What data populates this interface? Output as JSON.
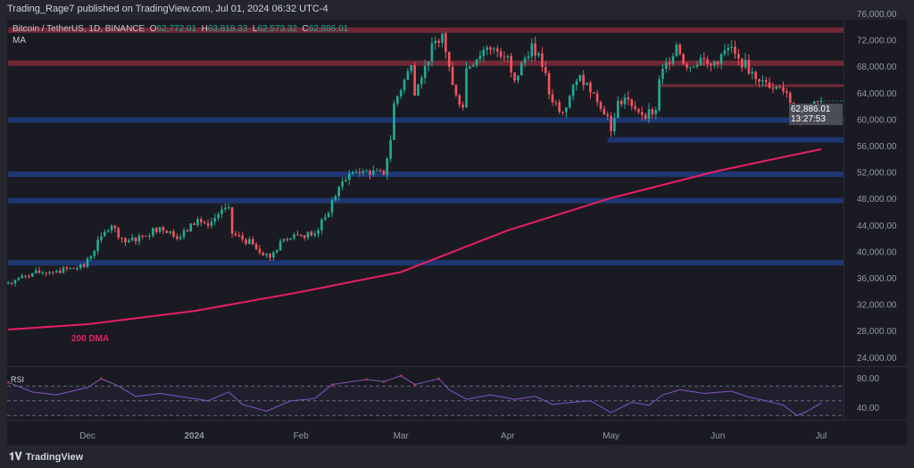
{
  "header": {
    "published": "Trading_Rage7 published on TradingView.com, Jul 01, 2024 06:32 UTC-4"
  },
  "symbol": {
    "name": "Bitcoin / TetherUS, 1D, BINANCE",
    "o_label": "O",
    "o": "62,772.01",
    "h_label": "H",
    "h": "63,818.33",
    "l_label": "L",
    "l": "62,573.32",
    "c_label": "C",
    "c": "62,886.01",
    "indicator": "MA"
  },
  "last_price": {
    "price": "62,886.01",
    "countdown": "13:27:53"
  },
  "footer": {
    "brand": "TradingView"
  },
  "colors": {
    "up": "#22ab94",
    "down": "#f7525f",
    "ma": "#e91e63",
    "resistance": "#7a2a38",
    "support": "#1f3a7a",
    "rsi": "#7e57c2"
  },
  "chart_data": [
    {
      "type": "candlestick",
      "title": "Bitcoin / TetherUS, 1D",
      "ylim": [
        22000,
        78000
      ],
      "y_ticks": [
        "76,000.00",
        "72,000.00",
        "68,000.00",
        "64,000.00",
        "60,000.00",
        "56,000.00",
        "52,000.00",
        "48,000.00",
        "44,000.00",
        "40,000.00",
        "36,000.00",
        "32,000.00",
        "28,000.00",
        "24,000.00"
      ],
      "x_ticks": [
        "Dec",
        "2024",
        "Feb",
        "Mar",
        "Apr",
        "May",
        "Jun",
        "Jul"
      ],
      "x_tick_dates": [
        "2023-12-01",
        "2024-01-01",
        "2024-02-01",
        "2024-03-01",
        "2024-04-01",
        "2024-05-01",
        "2024-06-01",
        "2024-07-01"
      ],
      "close_keypoints": [
        [
          "2023-11-08",
          35400
        ],
        [
          "2023-11-15",
          36800
        ],
        [
          "2023-11-22",
          37200
        ],
        [
          "2023-11-30",
          37800
        ],
        [
          "2023-12-05",
          42400
        ],
        [
          "2023-12-08",
          44000
        ],
        [
          "2023-12-12",
          41500
        ],
        [
          "2023-12-17",
          42500
        ],
        [
          "2023-12-22",
          43800
        ],
        [
          "2023-12-28",
          42300
        ],
        [
          "2024-01-02",
          45000
        ],
        [
          "2024-01-05",
          44000
        ],
        [
          "2024-01-09",
          46500
        ],
        [
          "2024-01-11",
          46800
        ],
        [
          "2024-01-12",
          42800
        ],
        [
          "2024-01-18",
          41200
        ],
        [
          "2024-01-23",
          39200
        ],
        [
          "2024-01-27",
          42000
        ],
        [
          "2024-01-31",
          42600
        ],
        [
          "2024-02-05",
          42800
        ],
        [
          "2024-02-08",
          45300
        ],
        [
          "2024-02-12",
          49900
        ],
        [
          "2024-02-15",
          51900
        ],
        [
          "2024-02-20",
          52300
        ],
        [
          "2024-02-25",
          51700
        ],
        [
          "2024-02-27",
          57000
        ],
        [
          "2024-02-28",
          62500
        ],
        [
          "2024-03-04",
          68300
        ],
        [
          "2024-03-05",
          63700
        ],
        [
          "2024-03-08",
          68200
        ],
        [
          "2024-03-11",
          72000
        ],
        [
          "2024-03-13",
          73100
        ],
        [
          "2024-03-16",
          65300
        ],
        [
          "2024-03-19",
          61900
        ],
        [
          "2024-03-20",
          67800
        ],
        [
          "2024-03-25",
          70600
        ],
        [
          "2024-03-28",
          70800
        ],
        [
          "2024-04-01",
          69700
        ],
        [
          "2024-04-03",
          66000
        ],
        [
          "2024-04-08",
          71600
        ],
        [
          "2024-04-12",
          67100
        ],
        [
          "2024-04-13",
          63900
        ],
        [
          "2024-04-17",
          61200
        ],
        [
          "2024-04-22",
          66800
        ],
        [
          "2024-04-26",
          64000
        ],
        [
          "2024-04-30",
          60600
        ],
        [
          "2024-05-01",
          58300
        ],
        [
          "2024-05-03",
          62900
        ],
        [
          "2024-05-06",
          63100
        ],
        [
          "2024-05-10",
          60800
        ],
        [
          "2024-05-14",
          61500
        ],
        [
          "2024-05-15",
          66200
        ],
        [
          "2024-05-20",
          71400
        ],
        [
          "2024-05-23",
          67900
        ],
        [
          "2024-05-27",
          69400
        ],
        [
          "2024-05-30",
          68300
        ],
        [
          "2024-06-05",
          71100
        ],
        [
          "2024-06-07",
          69300
        ],
        [
          "2024-06-11",
          67300
        ],
        [
          "2024-06-14",
          66000
        ],
        [
          "2024-06-18",
          65100
        ],
        [
          "2024-06-21",
          64100
        ],
        [
          "2024-06-24",
          60300
        ],
        [
          "2024-06-27",
          61600
        ],
        [
          "2024-06-30",
          62700
        ],
        [
          "2024-07-01",
          62886
        ]
      ],
      "levels": [
        {
          "price": 73600,
          "kind": "resistance",
          "from": "2023-11-08"
        },
        {
          "price": 68600,
          "kind": "resistance",
          "from": "2023-11-08"
        },
        {
          "price": 65000,
          "kind": "resistance",
          "from": "2024-05-15"
        },
        {
          "price": 60000,
          "kind": "support",
          "from": "2023-11-08"
        },
        {
          "price": 57000,
          "kind": "support",
          "from": "2024-04-30"
        },
        {
          "price": 51800,
          "kind": "support",
          "from": "2023-11-08"
        },
        {
          "price": 47800,
          "kind": "support",
          "from": "2023-11-08"
        },
        {
          "price": 38400,
          "kind": "support",
          "from": "2023-11-08"
        }
      ],
      "ma": {
        "label": "200 DMA",
        "points": [
          [
            "2023-11-08",
            28300
          ],
          [
            "2023-12-01",
            29100
          ],
          [
            "2024-01-01",
            31100
          ],
          [
            "2024-02-01",
            34000
          ],
          [
            "2024-03-01",
            37000
          ],
          [
            "2024-04-01",
            43300
          ],
          [
            "2024-05-01",
            48200
          ],
          [
            "2024-06-01",
            52300
          ],
          [
            "2024-07-01",
            55600
          ]
        ]
      }
    },
    {
      "type": "line",
      "title": "RSI",
      "ylim": [
        20,
        90
      ],
      "y_ticks": [
        "80.00",
        "40.00"
      ],
      "bands": [
        70,
        50,
        30
      ],
      "points": [
        [
          "2023-11-08",
          75
        ],
        [
          "2023-11-15",
          62
        ],
        [
          "2023-11-22",
          58
        ],
        [
          "2023-12-01",
          68
        ],
        [
          "2023-12-05",
          80
        ],
        [
          "2023-12-10",
          70
        ],
        [
          "2023-12-15",
          56
        ],
        [
          "2023-12-22",
          60
        ],
        [
          "2023-12-29",
          55
        ],
        [
          "2024-01-05",
          50
        ],
        [
          "2024-01-11",
          62
        ],
        [
          "2024-01-15",
          45
        ],
        [
          "2024-01-22",
          36
        ],
        [
          "2024-01-29",
          50
        ],
        [
          "2024-02-05",
          53
        ],
        [
          "2024-02-10",
          72
        ],
        [
          "2024-02-20",
          79
        ],
        [
          "2024-02-25",
          76
        ],
        [
          "2024-03-01",
          84
        ],
        [
          "2024-03-05",
          72
        ],
        [
          "2024-03-12",
          80
        ],
        [
          "2024-03-15",
          65
        ],
        [
          "2024-03-20",
          52
        ],
        [
          "2024-03-27",
          58
        ],
        [
          "2024-04-03",
          52
        ],
        [
          "2024-04-09",
          56
        ],
        [
          "2024-04-14",
          45
        ],
        [
          "2024-04-20",
          48
        ],
        [
          "2024-04-25",
          50
        ],
        [
          "2024-05-01",
          34
        ],
        [
          "2024-05-07",
          48
        ],
        [
          "2024-05-12",
          44
        ],
        [
          "2024-05-16",
          58
        ],
        [
          "2024-05-21",
          65
        ],
        [
          "2024-05-28",
          60
        ],
        [
          "2024-06-05",
          63
        ],
        [
          "2024-06-10",
          55
        ],
        [
          "2024-06-15",
          50
        ],
        [
          "2024-06-20",
          44
        ],
        [
          "2024-06-24",
          30
        ],
        [
          "2024-06-27",
          36
        ],
        [
          "2024-07-01",
          47
        ]
      ]
    }
  ]
}
